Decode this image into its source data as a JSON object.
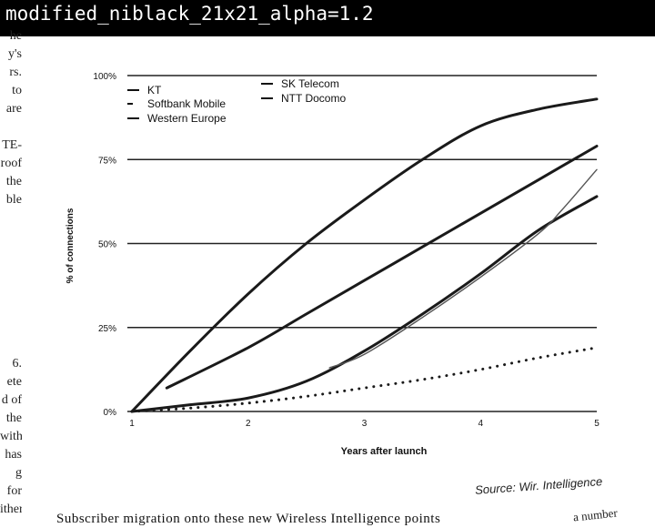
{
  "header": {
    "title": "modified_niblack_21x21_alpha=1.2"
  },
  "page_text": {
    "left_fragments": [
      "he",
      "y's",
      "rs.",
      "to",
      "are",
      "",
      "TE-",
      "roof",
      "the",
      "ble",
      "",
      "",
      "",
      "",
      "",
      "",
      "",
      "",
      "6.",
      "ete",
      "d of",
      "the",
      "with",
      "has",
      "g for",
      "ither"
    ],
    "bottom_line": "Subscriber migration onto these new     Wireless Intelligence points",
    "bottom_right": "a number",
    "source": "Source: Wir.    Intelligence"
  },
  "chart_data": {
    "type": "line",
    "xlabel": "Years after launch",
    "ylabel": "% of connections",
    "xlim": [
      1,
      5
    ],
    "ylim": [
      0,
      100
    ],
    "x_ticks": [
      "1",
      "2",
      "3",
      "4",
      "5"
    ],
    "y_ticks": [
      "0%",
      "25%",
      "50%",
      "75%",
      "100%"
    ],
    "legend": [
      "KT",
      "Softbank Mobile",
      "Western Europe",
      "SK Telecom",
      "NTT Docomo"
    ],
    "series": [
      {
        "name": "KT",
        "style": "solid",
        "x": [
          1,
          1.5,
          2,
          2.5,
          3,
          3.5,
          4,
          4.5,
          5
        ],
        "y": [
          0,
          18,
          35,
          50,
          63,
          75,
          85,
          90,
          93
        ]
      },
      {
        "name": "NTT Docomo",
        "style": "solid",
        "x": [
          1.3,
          2,
          2.5,
          3,
          3.5,
          4,
          4.5,
          5
        ],
        "y": [
          7,
          19,
          29,
          39,
          49,
          59,
          69,
          79
        ]
      },
      {
        "name": "SK Telecom",
        "style": "solid",
        "x": [
          1,
          1.5,
          2,
          2.5,
          3,
          3.5,
          4,
          4.5,
          5
        ],
        "y": [
          0,
          2,
          4,
          9,
          18,
          29,
          41,
          54,
          64
        ]
      },
      {
        "name": "Softbank Mobile",
        "style": "solid",
        "x": [
          2.7,
          3,
          3.5,
          4,
          4.5,
          4.7,
          5
        ],
        "y": [
          13,
          17,
          28,
          40,
          53,
          60,
          72
        ]
      },
      {
        "name": "Western Europe",
        "style": "dotted",
        "x": [
          1,
          1.5,
          2,
          2.5,
          3,
          3.5,
          4,
          4.5,
          5
        ],
        "y": [
          0,
          1,
          2.5,
          4.5,
          7,
          9.5,
          12.5,
          16,
          19
        ]
      }
    ]
  }
}
